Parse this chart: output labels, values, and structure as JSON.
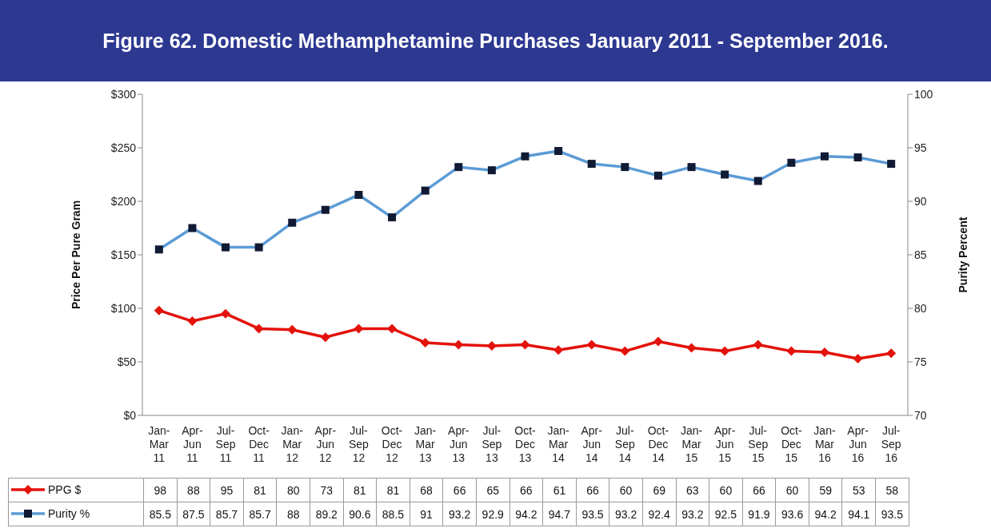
{
  "chart_data": {
    "type": "line",
    "title": "Figure 62. Domestic Methamphetamine Purchases January 2011 - September 2016.",
    "ylabel": "Price Per Pure Gram",
    "y2label": "Purity Percent",
    "categories": [
      "Jan-Mar 11",
      "Apr-Jun 11",
      "Jul-Sep 11",
      "Oct-Dec 11",
      "Jan-Mar 12",
      "Apr-Jun 12",
      "Jul-Sep 12",
      "Oct-Dec 12",
      "Jan-Mar 13",
      "Apr-Jun 13",
      "Jul-Sep 13",
      "Oct-Dec 13",
      "Jan-Mar 14",
      "Apr-Jun 14",
      "Jul-Sep 14",
      "Oct-Dec 14",
      "Jan-Mar 15",
      "Apr-Jun 15",
      "Jul-Sep 15",
      "Oct-Dec 15",
      "Jan-Mar 16",
      "Apr-Jun 16",
      "Jul-Sep 16"
    ],
    "series": [
      {
        "name": "PPG $",
        "color": "#e3120b",
        "marker": "diamond",
        "values": [
          98,
          88,
          95,
          81,
          80,
          73,
          81,
          81,
          68,
          66,
          65,
          66,
          61,
          66,
          60,
          69,
          63,
          60,
          66,
          60,
          59,
          53,
          58
        ]
      },
      {
        "name": "Purity %",
        "color": "#5b9bd5",
        "marker": "square",
        "axis": "y2",
        "values": [
          85.5,
          87.5,
          85.7,
          85.7,
          88,
          89.2,
          90.6,
          88.5,
          91,
          93.2,
          92.9,
          94.2,
          94.7,
          93.5,
          93.2,
          92.4,
          93.2,
          92.5,
          91.9,
          93.6,
          94.2,
          94.1,
          93.5
        ]
      }
    ],
    "ylim": [
      0,
      300
    ],
    "yticks": [
      {
        "value": 0,
        "label": "$0"
      },
      {
        "value": 50,
        "label": "$50"
      },
      {
        "value": 100,
        "label": "$100"
      },
      {
        "value": 150,
        "label": "$150"
      },
      {
        "value": 200,
        "label": "$200"
      },
      {
        "value": 250,
        "label": "$250"
      },
      {
        "value": 300,
        "label": "$300"
      }
    ],
    "y2lim": [
      70,
      100
    ],
    "y2ticks": [
      70,
      75,
      80,
      85,
      90,
      95,
      100
    ],
    "data_labels": true,
    "legend": "bottom"
  }
}
